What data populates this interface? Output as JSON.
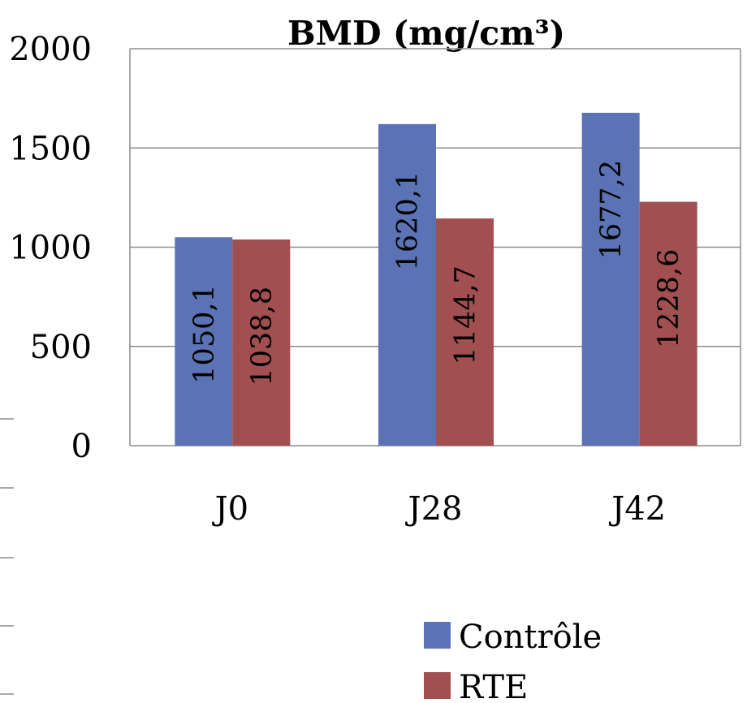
{
  "chart_data": {
    "type": "bar",
    "title": "BMD (mg/cm³)",
    "categories": [
      "J0",
      "J28",
      "J42"
    ],
    "series": [
      {
        "name": "Contrôle",
        "values": [
          1050.1,
          1620.1,
          1677.2
        ],
        "labels": [
          "1050,1",
          "1620,1",
          "1677,2"
        ],
        "color": "#5b73b4"
      },
      {
        "name": "RTE",
        "values": [
          1038.8,
          1144.7,
          1228.6
        ],
        "labels": [
          "1038,8",
          "1144,7",
          "1228,6"
        ],
        "color": "#a14f50"
      }
    ],
    "yticks": [
      0,
      500,
      1000,
      1500,
      2000
    ],
    "ylim": [
      0,
      2000
    ],
    "grid": true,
    "legend": "bottom-right"
  }
}
